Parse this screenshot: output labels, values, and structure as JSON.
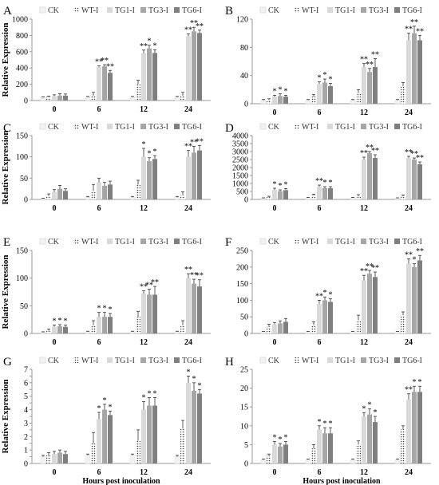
{
  "figure": {
    "series_names": [
      "CK",
      "WT-I",
      "TG1-I",
      "TG3-I",
      "TG6-I"
    ],
    "series_colors": [
      "#f2f2f2",
      "#ffffff",
      "#d9d9d9",
      "#a6a6a6",
      "#7f7f7f"
    ],
    "series_patterns": [
      "solid",
      "dotted",
      "solid",
      "solid",
      "solid"
    ],
    "ylabel": "Relative Expression",
    "xlabel": "Hours post inoculation",
    "time_points": [
      "0",
      "6",
      "12",
      "24"
    ]
  },
  "chart_data": [
    {
      "type": "bar",
      "panel": "A",
      "categories": [
        "0",
        "6",
        "12",
        "24"
      ],
      "ylim": [
        0,
        1000
      ],
      "yticks": [
        0,
        200,
        400,
        600,
        800,
        1000
      ],
      "ytick_labels": [
        "0",
        "200",
        "400",
        "600",
        "800",
        "1000"
      ],
      "ylabel": "Relative Expression",
      "xlabel": "",
      "series": [
        {
          "name": "CK",
          "values": [
            40,
            40,
            40,
            40
          ],
          "errors": [
            5,
            10,
            10,
            10
          ]
        },
        {
          "name": "WT-I",
          "values": [
            45,
            60,
            200,
            60
          ],
          "errors": [
            8,
            40,
            50,
            40
          ]
        },
        {
          "name": "TG1-I",
          "values": [
            55,
            410,
            580,
            790
          ],
          "errors": [
            15,
            15,
            40,
            30
          ]
        },
        {
          "name": "TG3-I",
          "values": [
            60,
            420,
            640,
            850
          ],
          "errors": [
            25,
            20,
            40,
            50
          ]
        },
        {
          "name": "TG6-I",
          "values": [
            60,
            340,
            585,
            830
          ],
          "errors": [
            20,
            30,
            40,
            35
          ]
        }
      ],
      "annotations": [
        [
          "",
          "",
          "",
          "",
          ""
        ],
        [
          "",
          "",
          "**",
          "**",
          "**"
        ],
        [
          "",
          "",
          "**",
          "*",
          "*"
        ],
        [
          "",
          "",
          "**",
          "**",
          "**"
        ]
      ]
    },
    {
      "type": "bar",
      "panel": "B",
      "categories": [
        "0",
        "6",
        "12",
        "24"
      ],
      "ylim": [
        0,
        120
      ],
      "yticks": [
        0,
        40,
        80,
        120
      ],
      "ytick_labels": [
        "0",
        "40",
        "80",
        "120"
      ],
      "ylabel": "",
      "xlabel": "",
      "series": [
        {
          "name": "CK",
          "values": [
            5,
            5,
            5,
            5
          ],
          "errors": [
            1,
            1,
            1,
            1
          ]
        },
        {
          "name": "WT-I",
          "values": [
            5,
            10,
            15,
            25
          ],
          "errors": [
            2,
            3,
            5,
            5
          ]
        },
        {
          "name": "TG1-I",
          "values": [
            10,
            28,
            52,
            90
          ],
          "errors": [
            2,
            3,
            5,
            10
          ]
        },
        {
          "name": "TG3-I",
          "values": [
            11,
            30,
            45,
            100
          ],
          "errors": [
            3,
            5,
            5,
            10
          ]
        },
        {
          "name": "TG6-I",
          "values": [
            10,
            25,
            52,
            90
          ],
          "errors": [
            2,
            4,
            12,
            7
          ]
        }
      ],
      "annotations": [
        [
          "",
          "",
          "*",
          "*",
          "*"
        ],
        [
          "",
          "",
          "*",
          "*",
          "*"
        ],
        [
          "",
          "",
          "**",
          "**",
          "**"
        ],
        [
          "",
          "",
          "**",
          "**",
          "**"
        ]
      ]
    },
    {
      "type": "bar",
      "panel": "C",
      "categories": [
        "0",
        "6",
        "12",
        "24"
      ],
      "ylim": [
        0,
        150
      ],
      "yticks": [
        0,
        50,
        100,
        150
      ],
      "ytick_labels": [
        "0",
        "50",
        "100",
        "150"
      ],
      "ylabel": "Relative Expression",
      "xlabel": "",
      "series": [
        {
          "name": "CK",
          "values": [
            2,
            5,
            5,
            5
          ],
          "errors": [
            1,
            2,
            2,
            2
          ]
        },
        {
          "name": "WT-I",
          "values": [
            8,
            20,
            35,
            10
          ],
          "errors": [
            5,
            15,
            10,
            8
          ]
        },
        {
          "name": "TG1-I",
          "values": [
            18,
            40,
            100,
            100
          ],
          "errors": [
            5,
            10,
            20,
            15
          ]
        },
        {
          "name": "TG3-I",
          "values": [
            25,
            32,
            90,
            110
          ],
          "errors": [
            8,
            8,
            8,
            15
          ]
        },
        {
          "name": "TG6-I",
          "values": [
            20,
            35,
            95,
            115
          ],
          "errors": [
            5,
            8,
            8,
            12
          ]
        }
      ],
      "annotations": [
        [
          "",
          "",
          "",
          "",
          ""
        ],
        [
          "",
          "",
          "",
          "",
          ""
        ],
        [
          "",
          "",
          "*",
          "*",
          "*"
        ],
        [
          "",
          "",
          "**",
          "**",
          "**"
        ]
      ]
    },
    {
      "type": "bar",
      "panel": "D",
      "categories": [
        "0",
        "6",
        "12",
        "24"
      ],
      "ylim": [
        0,
        4000
      ],
      "yticks": [
        0,
        500,
        1000,
        1500,
        2000,
        2500,
        3000,
        3500,
        4000
      ],
      "ytick_labels": [
        "0",
        "500",
        "1000",
        "1500",
        "2000",
        "2500",
        "3000",
        "3500",
        "4000"
      ],
      "ylabel": "",
      "xlabel": "",
      "series": [
        {
          "name": "CK",
          "values": [
            80,
            100,
            100,
            80
          ],
          "errors": [
            20,
            30,
            30,
            20
          ]
        },
        {
          "name": "WT-I",
          "values": [
            150,
            250,
            200,
            200
          ],
          "errors": [
            50,
            80,
            100,
            80
          ]
        },
        {
          "name": "TG1-I",
          "values": [
            600,
            800,
            2500,
            2600
          ],
          "errors": [
            100,
            100,
            150,
            100
          ]
        },
        {
          "name": "TG3-I",
          "values": [
            520,
            700,
            2900,
            2500
          ],
          "errors": [
            80,
            100,
            100,
            100
          ]
        },
        {
          "name": "TG6-I",
          "values": [
            580,
            700,
            2600,
            2200
          ],
          "errors": [
            100,
            100,
            200,
            150
          ]
        }
      ],
      "annotations": [
        [
          "",
          "",
          "*",
          "*",
          "*"
        ],
        [
          "",
          "",
          "**",
          "*",
          "*"
        ],
        [
          "",
          "",
          "**",
          "**",
          "**"
        ],
        [
          "",
          "",
          "**",
          "**",
          "**"
        ]
      ]
    },
    {
      "type": "bar",
      "panel": "E",
      "categories": [
        "0",
        "6",
        "12",
        "24"
      ],
      "ylim": [
        0,
        150
      ],
      "yticks": [
        0,
        50,
        100,
        150
      ],
      "ytick_labels": [
        "0",
        "50",
        "100",
        "150"
      ],
      "ylabel": "Relative Expression",
      "xlabel": "",
      "series": [
        {
          "name": "CK",
          "values": [
            2,
            3,
            3,
            3
          ],
          "errors": [
            1,
            1,
            1,
            1
          ]
        },
        {
          "name": "WT-I",
          "values": [
            5,
            15,
            30,
            15
          ],
          "errors": [
            3,
            8,
            10,
            8
          ]
        },
        {
          "name": "TG1-I",
          "values": [
            12,
            30,
            72,
            100
          ],
          "errors": [
            3,
            8,
            5,
            8
          ]
        },
        {
          "name": "TG3-I",
          "values": [
            13,
            30,
            70,
            90
          ],
          "errors": [
            3,
            8,
            10,
            8
          ]
        },
        {
          "name": "TG6-I",
          "values": [
            12,
            30,
            70,
            85
          ],
          "errors": [
            3,
            6,
            15,
            12
          ]
        }
      ],
      "annotations": [
        [
          "",
          "",
          "*",
          "*",
          "*"
        ],
        [
          "",
          "",
          "*",
          "*",
          "*"
        ],
        [
          "",
          "",
          "**",
          "**",
          "**"
        ],
        [
          "",
          "",
          "**",
          "**",
          "**"
        ]
      ]
    },
    {
      "type": "bar",
      "panel": "F",
      "categories": [
        "0",
        "6",
        "12",
        "24"
      ],
      "ylim": [
        0,
        250
      ],
      "yticks": [
        0,
        50,
        100,
        150,
        200,
        250
      ],
      "ytick_labels": [
        "0",
        "50",
        "100",
        "150",
        "200",
        "250"
      ],
      "ylabel": "",
      "xlabel": "",
      "series": [
        {
          "name": "CK",
          "values": [
            5,
            5,
            5,
            5
          ],
          "errors": [
            1,
            1,
            1,
            1
          ]
        },
        {
          "name": "WT-I",
          "values": [
            20,
            25,
            40,
            55
          ],
          "errors": [
            8,
            10,
            15,
            10
          ]
        },
        {
          "name": "TG1-I",
          "values": [
            28,
            90,
            160,
            210
          ],
          "errors": [
            5,
            10,
            15,
            15
          ]
        },
        {
          "name": "TG3-I",
          "values": [
            30,
            100,
            180,
            200
          ],
          "errors": [
            8,
            10,
            10,
            10
          ]
        },
        {
          "name": "TG6-I",
          "values": [
            35,
            95,
            170,
            220
          ],
          "errors": [
            10,
            10,
            15,
            15
          ]
        }
      ],
      "annotations": [
        [
          "",
          "",
          "",
          "",
          ""
        ],
        [
          "",
          "",
          "**",
          "*",
          "*"
        ],
        [
          "",
          "",
          "**",
          "**",
          "**"
        ],
        [
          "",
          "",
          "**",
          "*",
          "**"
        ]
      ]
    },
    {
      "type": "bar",
      "panel": "G",
      "categories": [
        "0",
        "6",
        "12",
        "24"
      ],
      "ylim": [
        0,
        7
      ],
      "yticks": [
        0,
        0.5,
        1,
        1.5,
        2,
        2.5,
        3,
        3.5,
        4,
        4.5,
        5,
        5.5,
        6,
        6.5,
        7
      ],
      "ytick_labels": [
        "0",
        "",
        "1",
        "",
        "2",
        "",
        "3",
        "",
        "4",
        "",
        "5",
        "",
        "6",
        "",
        "7"
      ],
      "ylabel": "Relative Expression",
      "xlabel": "Hours post inoculation",
      "series": [
        {
          "name": "CK",
          "values": [
            0.5,
            0.6,
            0.6,
            0.5
          ],
          "errors": [
            0.1,
            0.1,
            0.1,
            0.1
          ]
        },
        {
          "name": "WT-I",
          "values": [
            0.6,
            1.5,
            1.7,
            2.6
          ],
          "errors": [
            0.2,
            0.8,
            0.8,
            0.6
          ]
        },
        {
          "name": "TG1-I",
          "values": [
            0.7,
            3.3,
            4.0,
            6.0
          ],
          "errors": [
            0.2,
            0.5,
            0.6,
            0.5
          ]
        },
        {
          "name": "TG3-I",
          "values": [
            0.8,
            4.0,
            4.3,
            5.4
          ],
          "errors": [
            0.2,
            0.4,
            0.6,
            0.6
          ]
        },
        {
          "name": "TG6-I",
          "values": [
            0.7,
            3.6,
            4.3,
            5.2
          ],
          "errors": [
            0.2,
            0.3,
            0.6,
            0.3
          ]
        }
      ],
      "annotations": [
        [
          "",
          "",
          "",
          "",
          ""
        ],
        [
          "",
          "",
          "*",
          "*",
          "*"
        ],
        [
          "",
          "",
          "*",
          "*",
          "*"
        ],
        [
          "",
          "",
          "*",
          "*",
          "*"
        ]
      ]
    },
    {
      "type": "bar",
      "panel": "H",
      "categories": [
        "0",
        "6",
        "12",
        "24"
      ],
      "ylim": [
        0,
        25
      ],
      "yticks": [
        0,
        5,
        10,
        15,
        20,
        25
      ],
      "ytick_labels": [
        "0",
        "5",
        "10",
        "15",
        "20",
        "25"
      ],
      "ylabel": "",
      "xlabel": "Hours post inoculation",
      "series": [
        {
          "name": "CK",
          "values": [
            1,
            1,
            1,
            1
          ],
          "errors": [
            0.2,
            0.2,
            0.2,
            0.2
          ]
        },
        {
          "name": "WT-I",
          "values": [
            2,
            4,
            5,
            9
          ],
          "errors": [
            0.5,
            1,
            1,
            1
          ]
        },
        {
          "name": "TG1-I",
          "values": [
            5,
            9,
            12.5,
            17
          ],
          "errors": [
            0.8,
            1,
            1,
            1.5
          ]
        },
        {
          "name": "TG3-I",
          "values": [
            4.5,
            8,
            13,
            19
          ],
          "errors": [
            0.8,
            1.5,
            1.5,
            1.5
          ]
        },
        {
          "name": "TG6-I",
          "values": [
            5,
            8,
            11,
            19
          ],
          "errors": [
            0.8,
            1.5,
            1.5,
            1.5
          ]
        }
      ],
      "annotations": [
        [
          "",
          "",
          "*",
          "*",
          "*"
        ],
        [
          "",
          "",
          "*",
          "*",
          "*"
        ],
        [
          "",
          "",
          "*",
          "*",
          "*"
        ],
        [
          "",
          "",
          "**",
          "*",
          "*"
        ]
      ]
    }
  ]
}
